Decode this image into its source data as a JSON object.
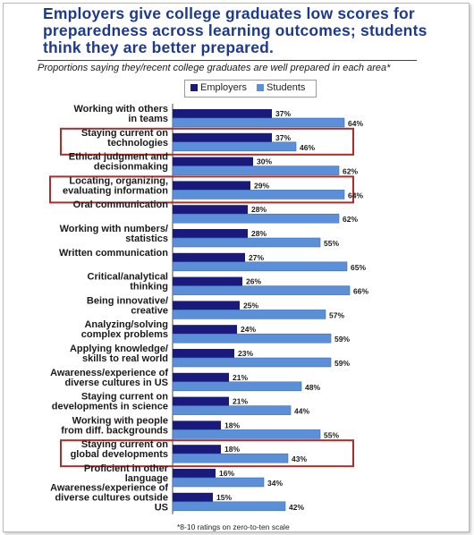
{
  "title": "Employers give college graduates low scores for preparedness across learning outcomes; students think they are better prepared.",
  "subtitle": "Proportions saying they/recent college graduates are well prepared in each area*",
  "footnote": "*8-10 ratings on zero-to-ten scale",
  "colors": {
    "title": "#1d3a8c",
    "employers": "#1a1a7c",
    "students": "#5b8fd8",
    "highlight": "#b02a2a",
    "rule": "#9e1b1b"
  },
  "chart_data": {
    "type": "bar",
    "orientation": "horizontal",
    "title": "Employers give college graduates low scores for preparedness across learning outcomes; students think they are better prepared.",
    "subtitle": "Proportions saying they/recent college graduates are well prepared in each area*",
    "xlim": [
      0,
      100
    ],
    "grid": false,
    "legend_placement": "top",
    "categories": [
      [
        "Working with others",
        "in teams"
      ],
      [
        "Staying current on",
        "technologies"
      ],
      [
        "Ethical judgment and",
        "decisionmaking"
      ],
      [
        "Locating, organizing,",
        "evaluating information"
      ],
      [
        "Oral communication"
      ],
      [
        "Working with numbers/",
        "statistics"
      ],
      [
        "Written communication"
      ],
      [
        "Critical/analytical",
        "thinking"
      ],
      [
        "Being innovative/",
        "creative"
      ],
      [
        "Analyzing/solving",
        "complex problems"
      ],
      [
        "Applying knowledge/",
        "skills to real world"
      ],
      [
        "Awareness/experience of",
        "diverse cultures in US"
      ],
      [
        "Staying current on",
        "developments in science"
      ],
      [
        "Working with people",
        "from diff. backgrounds"
      ],
      [
        "Staying current on",
        "global developments"
      ],
      [
        "Proficient in other",
        "language"
      ],
      [
        "Awareness/experience of",
        "diverse cultures outside",
        "US"
      ]
    ],
    "series": [
      {
        "name": "Employers",
        "values": [
          37,
          37,
          30,
          29,
          28,
          28,
          27,
          26,
          25,
          24,
          23,
          21,
          21,
          18,
          18,
          16,
          15
        ]
      },
      {
        "name": "Students",
        "values": [
          64,
          46,
          62,
          64,
          62,
          55,
          65,
          66,
          57,
          59,
          59,
          48,
          44,
          55,
          43,
          34,
          42
        ]
      }
    ],
    "value_labels": {
      "Employers": [
        "37%",
        "37%",
        "30%",
        "29%",
        "28%",
        "28%",
        "27%",
        "26%",
        "25%",
        "24%",
        "23%",
        "21%",
        "21%",
        "18%",
        "18%",
        "16%",
        "15%"
      ],
      "Students": [
        "64%",
        "46%",
        "62%",
        "64%",
        "62%",
        "55%",
        "65%",
        "66%",
        "57%",
        "59%",
        "59%",
        "48%",
        "44%",
        "55%",
        "43%",
        "34%",
        "42%"
      ]
    },
    "highlighted_categories": [
      1,
      3,
      14
    ]
  }
}
